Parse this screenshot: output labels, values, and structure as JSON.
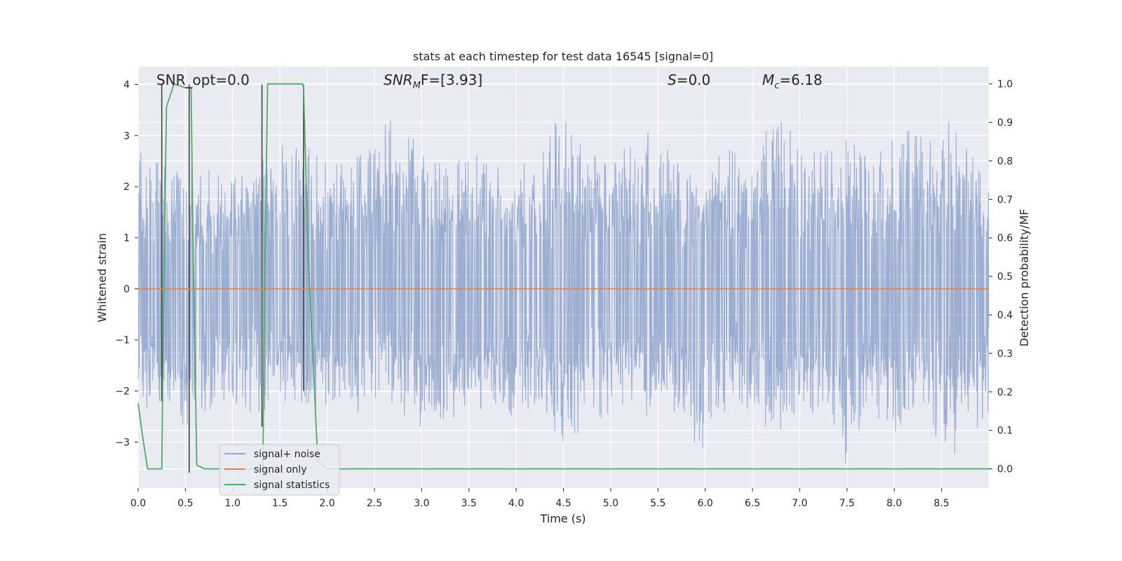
{
  "chart_data": {
    "type": "line",
    "title": "stats at each timestep for test data 16545 [signal=0]",
    "xlabel": "Time (s)",
    "ylabel": "Whitened strain",
    "ylabel_right": "Detection probability/MF",
    "xlim": [
      0,
      9.0
    ],
    "ylim": [
      -3.9,
      4.35
    ],
    "ylim_right": [
      -0.05,
      1.045
    ],
    "x_ticks": [
      "0.0",
      "0.5",
      "1.0",
      "1.5",
      "2.0",
      "2.5",
      "3.0",
      "3.5",
      "4.0",
      "4.5",
      "5.0",
      "5.5",
      "6.0",
      "6.5",
      "7.0",
      "7.5",
      "8.0",
      "8.5"
    ],
    "y_ticks_left": [
      "−3",
      "−2",
      "−1",
      "0",
      "1",
      "2",
      "3",
      "4"
    ],
    "y_ticks_right": [
      "0.0",
      "0.1",
      "0.2",
      "0.3",
      "0.4",
      "0.5",
      "0.6",
      "0.7",
      "0.8",
      "0.9",
      "1.0"
    ],
    "grid": true,
    "legend_position": "lower-left",
    "annotations": {
      "snr_opt": "SNR_opt=0.0",
      "snr_mf_base": "SNR",
      "snr_mf_sub": "M",
      "snr_mf_rest": "F=[3.93]",
      "s_var": "S",
      "s_rest": "=0.0",
      "mc_var": "M",
      "mc_sub": "c",
      "mc_rest": "=6.18"
    },
    "noise_envelope": {
      "x": [
        0.0,
        0.25,
        0.5,
        0.75,
        1.0,
        1.25,
        1.5,
        1.75,
        2.0,
        2.25,
        2.5,
        2.75,
        3.0,
        3.25,
        3.5,
        3.75,
        4.0,
        4.25,
        4.5,
        4.75,
        5.0,
        5.25,
        5.5,
        5.75,
        6.0,
        6.25,
        6.5,
        6.75,
        7.0,
        7.25,
        7.5,
        7.75,
        8.0,
        8.25,
        8.5,
        8.75,
        9.0
      ],
      "upper": [
        3.1,
        2.4,
        2.6,
        2.5,
        2.3,
        2.4,
        2.9,
        2.8,
        2.6,
        2.5,
        2.9,
        3.6,
        2.8,
        2.6,
        2.7,
        2.8,
        2.5,
        2.8,
        3.6,
        2.7,
        2.6,
        2.9,
        3.3,
        2.7,
        2.6,
        2.9,
        2.7,
        3.6,
        2.9,
        2.7,
        3.2,
        2.7,
        3.0,
        3.2,
        3.3,
        3.4,
        2.0
      ],
      "lower": [
        -2.3,
        -2.6,
        -2.9,
        -2.4,
        -2.5,
        -2.7,
        -2.2,
        -2.5,
        -2.4,
        -2.6,
        -2.2,
        -2.4,
        -3.1,
        -2.8,
        -2.6,
        -2.5,
        -2.8,
        -2.6,
        -3.3,
        -2.6,
        -2.5,
        -2.6,
        -2.8,
        -2.6,
        -3.5,
        -2.4,
        -2.5,
        -2.9,
        -2.6,
        -2.4,
        -3.5,
        -2.6,
        -2.9,
        -2.5,
        -3.4,
        -3.2,
        -2.5
      ]
    },
    "series": [
      {
        "name": "signal+ noise",
        "color": "#4c72b0",
        "axis": "left"
      },
      {
        "name": "signal only",
        "color": "#dd8452",
        "axis": "left",
        "x": [
          0.0,
          9.0
        ],
        "y": [
          0.0,
          0.0
        ]
      },
      {
        "name": "signal statistics",
        "color": "#55a868",
        "axis": "right",
        "x": [
          0.0,
          0.05,
          0.1,
          0.25,
          0.27,
          0.3,
          0.38,
          0.5,
          0.55,
          0.56,
          0.58,
          0.62,
          0.7,
          0.9,
          1.0,
          1.3,
          1.32,
          1.34,
          1.37,
          1.38,
          1.45,
          1.65,
          1.74,
          1.75,
          1.8,
          1.9,
          2.0,
          3.0,
          5.0,
          7.0,
          9.0
        ],
        "y": [
          0.17,
          0.08,
          0.0,
          0.0,
          0.45,
          0.94,
          1.0,
          0.99,
          0.99,
          0.99,
          0.6,
          0.01,
          0.0,
          0.0,
          0.0,
          0.0,
          0.0,
          0.5,
          1.0,
          1.0,
          1.0,
          1.0,
          1.0,
          0.99,
          0.55,
          0.02,
          0.0,
          0.0,
          0.0,
          0.0,
          0.0
        ]
      }
    ],
    "vertical_markers": {
      "color": "#444444",
      "segments": [
        {
          "x": 0.25,
          "y1": -2.2,
          "y2": 4.0
        },
        {
          "x": 0.54,
          "y1": -3.6,
          "y2": 4.0
        },
        {
          "x": 1.31,
          "y1": -2.7,
          "y2": 4.0
        },
        {
          "x": 1.75,
          "y1": -2.0,
          "y2": 4.0
        }
      ]
    }
  }
}
